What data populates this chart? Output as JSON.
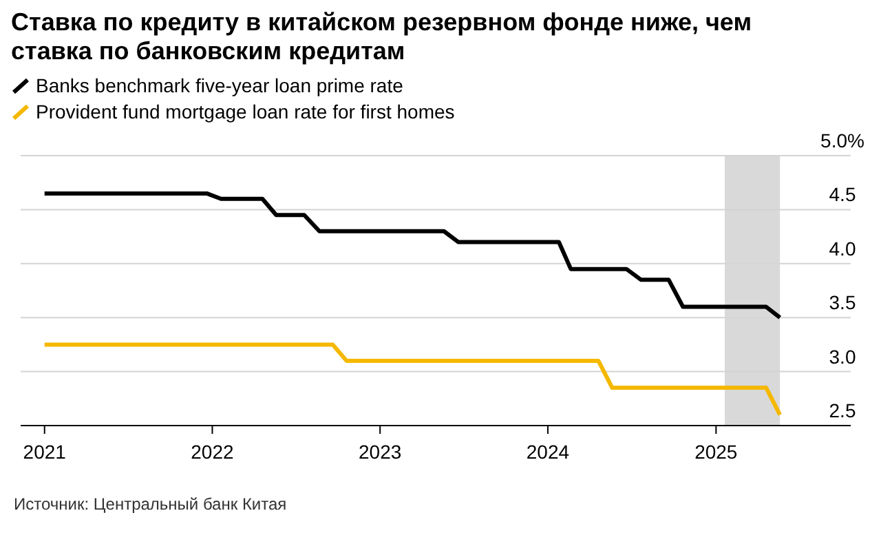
{
  "chart_data": {
    "type": "line",
    "title": "Ставка по кредиту в китайском резервном фонде ниже, чем ставка по банковским кредитам",
    "series": [
      {
        "name": "Banks benchmark five-year loan prime rate",
        "color": "#000000",
        "x": [
          "2021-01-01",
          "2021-12-20",
          "2022-01-20",
          "2022-04-20",
          "2022-05-20",
          "2022-07-20",
          "2022-08-22",
          "2023-05-20",
          "2023-06-20",
          "2024-01-25",
          "2024-02-20",
          "2024-06-20",
          "2024-07-22",
          "2024-09-20",
          "2024-10-21",
          "2025-04-20",
          "2025-05-20"
        ],
        "values": [
          4.65,
          4.65,
          4.6,
          4.6,
          4.45,
          4.45,
          4.3,
          4.3,
          4.2,
          4.2,
          3.95,
          3.95,
          3.85,
          3.85,
          3.6,
          3.6,
          3.5
        ]
      },
      {
        "name": "Provident fund mortgage loan rate for first homes",
        "color": "#f5b800",
        "x": [
          "2021-01-01",
          "2022-09-20",
          "2022-10-20",
          "2024-04-20",
          "2024-05-20",
          "2025-04-20",
          "2025-05-20"
        ],
        "values": [
          3.25,
          3.25,
          3.1,
          3.1,
          2.85,
          2.85,
          2.6
        ]
      }
    ],
    "xlim": [
      "2020-11-10",
      "2025-10-21"
    ],
    "xticks": [
      {
        "value": "2021-01-01",
        "label": "2021"
      },
      {
        "value": "2022-01-01",
        "label": "2022"
      },
      {
        "value": "2023-01-01",
        "label": "2023"
      },
      {
        "value": "2024-01-01",
        "label": "2024"
      },
      {
        "value": "2025-01-01",
        "label": "2025"
      }
    ],
    "ylim": [
      2.5,
      5.0
    ],
    "yticks": [
      2.5,
      {
        "value": 3,
        "label": "3.0"
      },
      3.5,
      {
        "value": 4,
        "label": "4.0"
      },
      4.5,
      {
        "value": 5.0,
        "label": "5.0%"
      }
    ],
    "bands": [
      {
        "axis": "x",
        "from": "2025-01-20",
        "to": "2025-05-20",
        "color": "#d9d9d9"
      }
    ],
    "grid": "y",
    "legend": "top left",
    "annotations": [
      "Источник: Центральный банк Китая"
    ]
  }
}
